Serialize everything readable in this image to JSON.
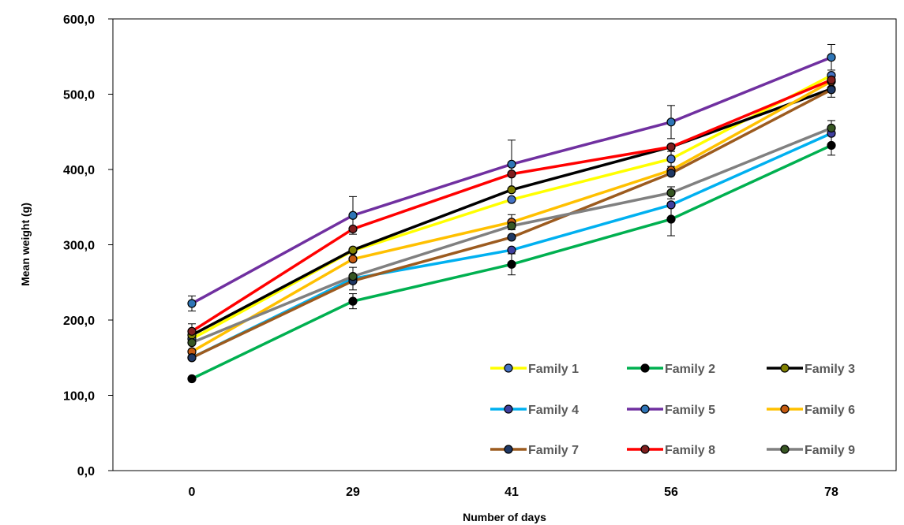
{
  "chart_data": {
    "type": "line",
    "title": "",
    "xlabel": "Number of days",
    "ylabel": "Mean weight (g)",
    "categories": [
      "0",
      "29",
      "41",
      "56",
      "78"
    ],
    "ylim": [
      0,
      600
    ],
    "yticks": [
      "0,0",
      "100,0",
      "200,0",
      "300,0",
      "400,0",
      "500,0",
      "600,0"
    ],
    "grid": false,
    "legend_position": "bottom-right",
    "series": [
      {
        "name": "Family 1",
        "color": "#FFFF00",
        "marker_color": "#4472C4",
        "values": [
          175,
          292,
          360,
          414,
          525
        ]
      },
      {
        "name": "Family 2",
        "color": "#00B050",
        "marker_color": "#000000",
        "values": [
          122,
          225,
          274,
          334,
          432
        ]
      },
      {
        "name": "Family 3",
        "color": "#000000",
        "marker_color": "#808000",
        "values": [
          180,
          293,
          373,
          430,
          507
        ]
      },
      {
        "name": "Family 4",
        "color": "#00B0F0",
        "marker_color": "#3F3F9F",
        "values": [
          150,
          255,
          293,
          353,
          448
        ]
      },
      {
        "name": "Family 5",
        "color": "#7030A0",
        "marker_color": "#2E75B6",
        "values": [
          222,
          339,
          407,
          463,
          549
        ]
      },
      {
        "name": "Family 6",
        "color": "#FFC000",
        "marker_color": "#C55A11",
        "values": [
          158,
          281,
          330,
          399,
          517
        ]
      },
      {
        "name": "Family 7",
        "color": "#9C5B1F",
        "marker_color": "#1F3864",
        "values": [
          150,
          252,
          310,
          395,
          506
        ]
      },
      {
        "name": "Family 8",
        "color": "#FF0000",
        "marker_color": "#7F1F1F",
        "values": [
          185,
          321,
          394,
          430,
          519
        ]
      },
      {
        "name": "Family 9",
        "color": "#808080",
        "marker_color": "#375623",
        "values": [
          170,
          258,
          325,
          369,
          455
        ]
      }
    ],
    "error_bars": [
      {
        "category": "0",
        "value": 222,
        "error": 10
      },
      {
        "category": "0",
        "value": 185,
        "error": 10
      },
      {
        "category": "29",
        "value": 339,
        "error": 25
      },
      {
        "category": "29",
        "value": 225,
        "error": 10
      },
      {
        "category": "29",
        "value": 255,
        "error": 15
      },
      {
        "category": "41",
        "value": 407,
        "error": 32
      },
      {
        "category": "41",
        "value": 274,
        "error": 14
      },
      {
        "category": "41",
        "value": 330,
        "error": 10
      },
      {
        "category": "56",
        "value": 463,
        "error": 22
      },
      {
        "category": "56",
        "value": 334,
        "error": 22
      },
      {
        "category": "56",
        "value": 414,
        "error": 10
      },
      {
        "category": "56",
        "value": 369,
        "error": 8
      },
      {
        "category": "78",
        "value": 549,
        "error": 17
      },
      {
        "category": "78",
        "value": 506,
        "error": 10
      },
      {
        "category": "78",
        "value": 432,
        "error": 13
      },
      {
        "category": "78",
        "value": 455,
        "error": 10
      }
    ]
  }
}
